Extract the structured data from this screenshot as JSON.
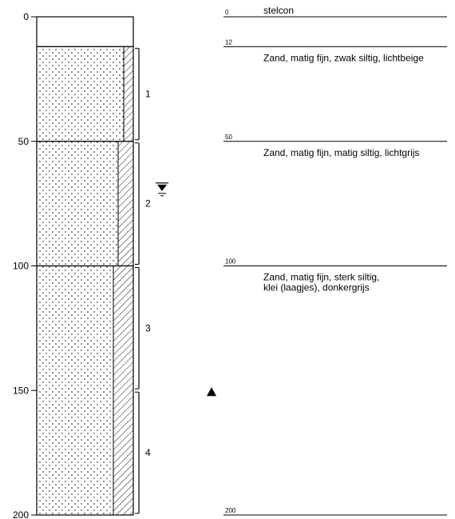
{
  "axis": {
    "ticks": [
      0,
      50,
      100,
      150,
      200
    ],
    "range": [
      0,
      200
    ]
  },
  "layers": [
    {
      "top": 0,
      "bottom": 12,
      "fill": "none",
      "silt": "none"
    },
    {
      "top": 12,
      "bottom": 50,
      "fill": "sand",
      "silt": "weak"
    },
    {
      "top": 50,
      "bottom": 100,
      "fill": "sand",
      "silt": "moderate"
    },
    {
      "top": 100,
      "bottom": 200,
      "fill": "sand",
      "silt": "strong"
    }
  ],
  "samples": [
    {
      "label": "1",
      "top": 12,
      "bottom": 50
    },
    {
      "label": "2",
      "top": 50,
      "bottom": 100
    },
    {
      "label": "3",
      "top": 100,
      "bottom": 150
    },
    {
      "label": "4",
      "top": 150,
      "bottom": 200
    }
  ],
  "groundwater_level": 68,
  "marker_depth": 150,
  "descriptions": [
    {
      "depth": "0",
      "lines": [
        "stelcon"
      ]
    },
    {
      "depth": "12",
      "lines": [
        "Zand, matig fijn, zwak siltig, lichtbeige"
      ]
    },
    {
      "depth": "50",
      "lines": [
        "Zand, matig fijn, matig siltig, lichtgrijs"
      ]
    },
    {
      "depth": "100",
      "lines": [
        "Zand, matig fijn, sterk siltig,",
        "klei (laagjes), donkergrijs"
      ]
    },
    {
      "depth": "200",
      "lines": []
    }
  ],
  "colors": {
    "ink": "#000000",
    "background": "#ffffff"
  }
}
